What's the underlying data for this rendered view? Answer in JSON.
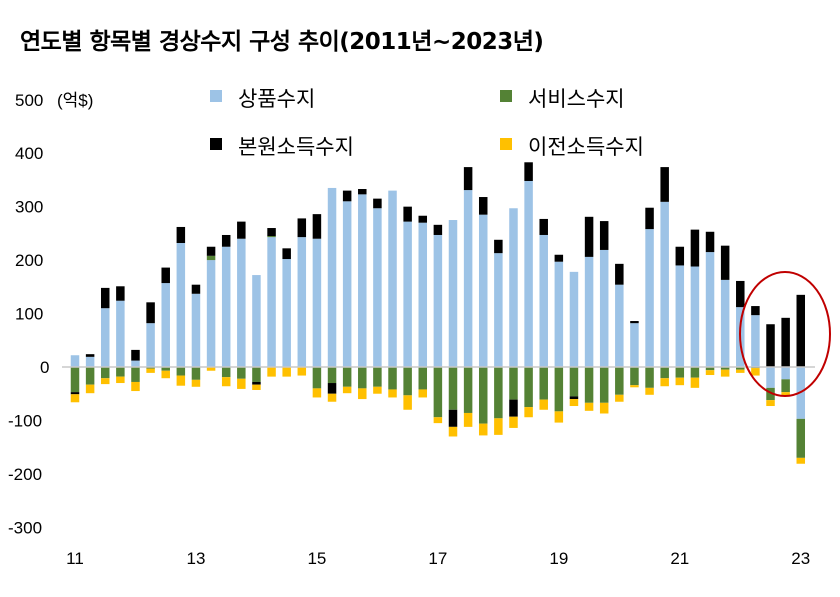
{
  "chart_data": {
    "type": "bar",
    "stacked": true,
    "title": "연도별 항목별 경상수지 구성 추이(2011년~2023년)",
    "ylabel": "",
    "y_unit": "(억$)",
    "ylim": [
      -300,
      500
    ],
    "yticks": [
      500,
      400,
      300,
      200,
      100,
      0,
      -100,
      -200,
      -300
    ],
    "xtick_labels": [
      "11",
      "13",
      "15",
      "17",
      "19",
      "21",
      "23"
    ],
    "x_period": "quarterly, 2011 Q1 to 2023 Q1",
    "legend_placement": "top",
    "grid": false,
    "annotation": "red ellipse around the last four quarters (2022 Q2 to 2023 Q1)",
    "series": [
      {
        "name": "상품수지",
        "color": "#9DC3E6",
        "values": [
          22,
          19,
          110,
          124,
          12,
          82,
          157,
          232,
          137,
          200,
          225,
          240,
          172,
          243,
          202,
          243,
          240,
          335,
          310,
          323,
          297,
          330,
          272,
          270,
          247,
          275,
          331,
          285,
          213,
          297,
          348,
          247,
          197,
          178,
          206,
          219,
          154,
          82,
          258,
          309,
          190,
          188,
          215,
          163,
          112,
          97,
          -39,
          -23,
          -97
        ]
      },
      {
        "name": "서비스수지",
        "color": "#548235",
        "values": [
          -47,
          -33,
          -21,
          -18,
          -28,
          -3,
          -7,
          -16,
          -24,
          8,
          -19,
          -22,
          -28,
          2,
          0,
          0,
          -40,
          -30,
          -37,
          -40,
          -37,
          -42,
          -53,
          -42,
          -94,
          -80,
          -86,
          -106,
          -96,
          -61,
          -75,
          -61,
          -83,
          -55,
          -67,
          -67,
          -52,
          -34,
          -39,
          -21,
          -20,
          -20,
          -6,
          -5,
          -5,
          -2,
          -23,
          -24,
          -73
        ]
      },
      {
        "name": "본원소득수지",
        "color": "#000000",
        "values": [
          -4,
          5,
          38,
          27,
          20,
          39,
          29,
          30,
          17,
          17,
          22,
          32,
          -5,
          15,
          20,
          35,
          46,
          -20,
          20,
          10,
          18,
          0,
          28,
          13,
          19,
          -32,
          43,
          33,
          25,
          -32,
          35,
          30,
          13,
          -5,
          75,
          54,
          39,
          4,
          40,
          65,
          35,
          69,
          38,
          64,
          49,
          17,
          80,
          92,
          135
        ]
      },
      {
        "name": "이전소득수지",
        "color": "#FFC000",
        "values": [
          -15,
          -16,
          -11,
          -12,
          -17,
          -8,
          -14,
          -19,
          -13,
          -7,
          -17,
          -19,
          -10,
          -18,
          -18,
          -16,
          -17,
          -15,
          -12,
          -20,
          -13,
          -15,
          -27,
          -15,
          -11,
          -18,
          -26,
          -22,
          -31,
          -21,
          -19,
          -19,
          -21,
          -13,
          -15,
          -20,
          -13,
          -4,
          -13,
          -15,
          -14,
          -19,
          -9,
          -13,
          -6,
          -14,
          -11,
          -6,
          -11
        ]
      }
    ]
  }
}
